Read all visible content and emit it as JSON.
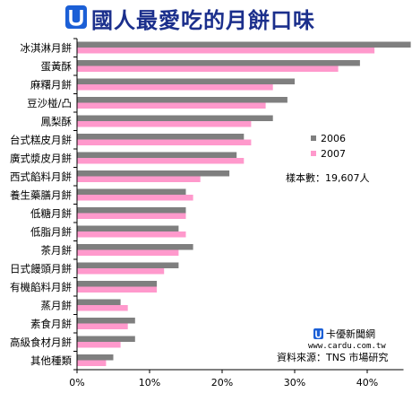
{
  "colors": {
    "series_2006": "#7f7f7f",
    "series_2007": "#ff99cc",
    "title": "#1b2f8c",
    "brand_accent": "#1b5fd6"
  },
  "icons": {
    "title_logo": "u-logo-icon",
    "brand_logo": "u-logo-small-icon"
  },
  "footer": {
    "brand_name": "卡優新聞網",
    "brand_url": "www.cardu.com.tw",
    "source": "資料來源：TNS 市場研究"
  },
  "chart_data": {
    "type": "bar",
    "orientation": "horizontal",
    "title": "國人最愛吃的月餅口味",
    "note": "樣本數：19,607人",
    "legend_position": "right",
    "xlim": [
      0,
      45
    ],
    "x_ticks": [
      "0%",
      "10%",
      "20%",
      "30%",
      "40%"
    ],
    "x_tick_values": [
      0,
      10,
      20,
      30,
      40
    ],
    "grid": false,
    "categories": [
      "冰淇淋月餅",
      "蛋黃酥",
      "麻糬月餅",
      "豆沙椪/凸",
      "鳳梨酥",
      "台式糕皮月餅",
      "廣式漿皮月餅",
      "西式餡料月餅",
      "養生藥膳月餅",
      "低糖月餅",
      "低脂月餅",
      "茶月餅",
      "日式饅頭月餅",
      "有機餡料月餅",
      "蒸月餅",
      "素食月餅",
      "高級食材月餅",
      "其他種類"
    ],
    "series": [
      {
        "name": "2006",
        "values": [
          46,
          39,
          30,
          29,
          27,
          23,
          22,
          21,
          15,
          15,
          14,
          16,
          14,
          11,
          6,
          8,
          8,
          5
        ]
      },
      {
        "name": "2007",
        "values": [
          41,
          36,
          27,
          26,
          24,
          24,
          23,
          17,
          16,
          15,
          15,
          14,
          12,
          11,
          7,
          7,
          6,
          4
        ]
      }
    ]
  }
}
